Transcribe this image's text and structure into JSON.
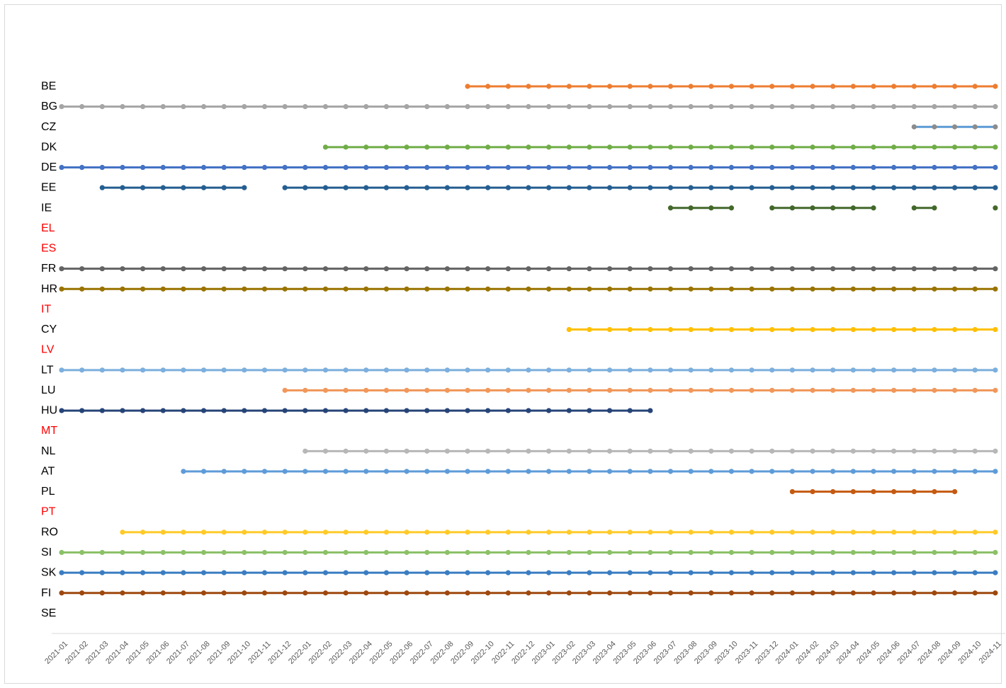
{
  "chart_data": {
    "type": "line",
    "title": "",
    "xlabel": "",
    "ylabel": "",
    "x": [
      "2021-01",
      "2021-02",
      "2021-03",
      "2021-04",
      "2021-05",
      "2021-06",
      "2021-07",
      "2021-08",
      "2021-09",
      "2021-10",
      "2021-11",
      "2021-12",
      "2022-01",
      "2022-02",
      "2022-03",
      "2022-04",
      "2022-05",
      "2022-06",
      "2022-07",
      "2022-08",
      "2022-09",
      "2022-10",
      "2022-11",
      "2022-12",
      "2023-01",
      "2023-02",
      "2023-03",
      "2023-04",
      "2023-05",
      "2023-06",
      "2023-07",
      "2023-08",
      "2023-09",
      "2023-10",
      "2023-11",
      "2023-12",
      "2024-01",
      "2024-02",
      "2024-03",
      "2024-04",
      "2024-05",
      "2024-06",
      "2024-07",
      "2024-08",
      "2024-09",
      "2024-10",
      "2024-11"
    ],
    "grid": false,
    "legend": "none",
    "countries": [
      {
        "code": "BE",
        "color": "#ED7D31",
        "label_color": "#000000",
        "ranges": [
          [
            "2022-09",
            "2024-11"
          ]
        ]
      },
      {
        "code": "BG",
        "color": "#A5A5A5",
        "label_color": "#000000",
        "ranges": [
          [
            "2021-01",
            "2024-11"
          ]
        ]
      },
      {
        "code": "CZ",
        "color": "#5B9BD5",
        "marker_color": "#8C8C8C",
        "label_color": "#000000",
        "ranges": [
          [
            "2024-07",
            "2024-11"
          ]
        ]
      },
      {
        "code": "DK",
        "color": "#70AD47",
        "label_color": "#000000",
        "ranges": [
          [
            "2022-02",
            "2024-11"
          ]
        ]
      },
      {
        "code": "DE",
        "color": "#4472C4",
        "label_color": "#000000",
        "ranges": [
          [
            "2021-01",
            "2024-11"
          ]
        ]
      },
      {
        "code": "EE",
        "color": "#255E91",
        "label_color": "#000000",
        "ranges": [
          [
            "2021-03",
            "2021-10"
          ],
          [
            "2021-12",
            "2024-11"
          ]
        ]
      },
      {
        "code": "IE",
        "color": "#43682B",
        "label_color": "#000000",
        "ranges": [
          [
            "2023-07",
            "2023-10"
          ],
          [
            "2023-12",
            "2024-05"
          ],
          [
            "2024-07",
            "2024-08"
          ],
          [
            "2024-11",
            "2024-11"
          ]
        ]
      },
      {
        "code": "EL",
        "color": "#FF0000",
        "label_color": "#FF0000",
        "ranges": []
      },
      {
        "code": "ES",
        "color": "#FF0000",
        "label_color": "#FF0000",
        "ranges": []
      },
      {
        "code": "FR",
        "color": "#636363",
        "label_color": "#000000",
        "ranges": [
          [
            "2021-01",
            "2024-11"
          ]
        ]
      },
      {
        "code": "HR",
        "color": "#997300",
        "label_color": "#000000",
        "ranges": [
          [
            "2021-01",
            "2024-11"
          ]
        ]
      },
      {
        "code": "IT",
        "color": "#FF0000",
        "label_color": "#FF0000",
        "ranges": []
      },
      {
        "code": "CY",
        "color": "#FFC000",
        "label_color": "#000000",
        "ranges": [
          [
            "2023-02",
            "2024-11"
          ]
        ]
      },
      {
        "code": "LV",
        "color": "#FF0000",
        "label_color": "#FF0000",
        "ranges": []
      },
      {
        "code": "LT",
        "color": "#7CAFDD",
        "label_color": "#000000",
        "ranges": [
          [
            "2021-01",
            "2024-11"
          ]
        ]
      },
      {
        "code": "LU",
        "color": "#F1975A",
        "label_color": "#000000",
        "ranges": [
          [
            "2021-12",
            "2024-11"
          ]
        ]
      },
      {
        "code": "HU",
        "color": "#264478",
        "label_color": "#000000",
        "ranges": [
          [
            "2021-01",
            "2023-06"
          ]
        ]
      },
      {
        "code": "MT",
        "color": "#FF0000",
        "label_color": "#FF0000",
        "ranges": []
      },
      {
        "code": "NL",
        "color": "#B7B7B7",
        "label_color": "#000000",
        "ranges": [
          [
            "2022-01",
            "2024-11"
          ]
        ]
      },
      {
        "code": "AT",
        "color": "#5E9BD8",
        "label_color": "#000000",
        "ranges": [
          [
            "2021-07",
            "2024-11"
          ]
        ]
      },
      {
        "code": "PL",
        "color": "#C55A11",
        "label_color": "#000000",
        "ranges": [
          [
            "2024-01",
            "2024-09"
          ]
        ]
      },
      {
        "code": "PT",
        "color": "#FF0000",
        "label_color": "#FF0000",
        "ranges": []
      },
      {
        "code": "RO",
        "color": "#FFCA28",
        "label_color": "#000000",
        "ranges": [
          [
            "2021-04",
            "2024-11"
          ]
        ]
      },
      {
        "code": "SI",
        "color": "#8CC168",
        "label_color": "#000000",
        "ranges": [
          [
            "2021-01",
            "2024-11"
          ]
        ]
      },
      {
        "code": "SK",
        "color": "#3A7DC2",
        "label_color": "#000000",
        "ranges": [
          [
            "2021-01",
            "2024-11"
          ]
        ]
      },
      {
        "code": "FI",
        "color": "#9E480E",
        "label_color": "#000000",
        "ranges": [
          [
            "2021-01",
            "2024-11"
          ]
        ]
      },
      {
        "code": "SE",
        "color": "#000000",
        "label_color": "#000000",
        "ranges": []
      }
    ]
  }
}
